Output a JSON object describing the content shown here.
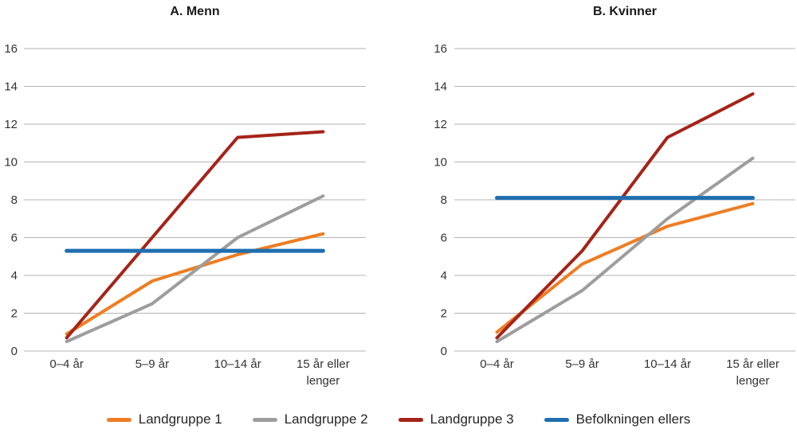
{
  "figure": {
    "background": "#FFFFFF",
    "grid_color": "#B3B3B3",
    "tick_text_color": "#333333",
    "legend": [
      {
        "label": "Landgruppe 1",
        "color": "#EE7D23"
      },
      {
        "label": "Landgruppe 2",
        "color": "#9D9D9D"
      },
      {
        "label": "Landgruppe 3",
        "color": "#A52318"
      },
      {
        "label": "Befolkningen ellers",
        "color": "#1F6EB0"
      }
    ]
  },
  "chart_data": [
    {
      "type": "line",
      "title": "A. Menn",
      "categories": [
        "0–4 år",
        "5–9 år",
        "10–14 år",
        "15 år eller lenger"
      ],
      "categories_wrapped": [
        [
          "0–4 år"
        ],
        [
          "5–9 år"
        ],
        [
          "10–14 år"
        ],
        [
          "15 år eller",
          "lenger"
        ]
      ],
      "ylim": [
        0,
        16
      ],
      "ytick_step": 2,
      "grid": "horizontal",
      "legend_position": "bottom-shared",
      "series": [
        {
          "name": "Landgruppe 1",
          "color": "#EE7D23",
          "values": [
            0.9,
            3.7,
            5.1,
            6.2
          ]
        },
        {
          "name": "Landgruppe 2",
          "color": "#9D9D9D",
          "values": [
            0.5,
            2.5,
            6.0,
            8.2
          ]
        },
        {
          "name": "Landgruppe 3",
          "color": "#A52318",
          "values": [
            0.7,
            6.0,
            11.3,
            11.6
          ]
        },
        {
          "name": "Befolkningen ellers",
          "color": "#1F6EB0",
          "values": [
            5.3,
            5.3,
            5.3,
            5.3
          ]
        }
      ]
    },
    {
      "type": "line",
      "title": "B. Kvinner",
      "categories": [
        "0–4 år",
        "5–9 år",
        "10–14 år",
        "15 år eller lenger"
      ],
      "categories_wrapped": [
        [
          "0–4 år"
        ],
        [
          "5–9 år"
        ],
        [
          "10–14 år"
        ],
        [
          "15 år eller",
          "lenger"
        ]
      ],
      "ylim": [
        0,
        16
      ],
      "ytick_step": 2,
      "grid": "horizontal",
      "legend_position": "bottom-shared",
      "series": [
        {
          "name": "Landgruppe 1",
          "color": "#EE7D23",
          "values": [
            1.0,
            4.6,
            6.6,
            7.8
          ]
        },
        {
          "name": "Landgruppe 2",
          "color": "#9D9D9D",
          "values": [
            0.5,
            3.2,
            7.0,
            10.2
          ]
        },
        {
          "name": "Landgruppe 3",
          "color": "#A52318",
          "values": [
            0.7,
            5.3,
            11.3,
            13.6
          ]
        },
        {
          "name": "Befolkningen ellers",
          "color": "#1F6EB0",
          "values": [
            8.1,
            8.1,
            8.1,
            8.1
          ]
        }
      ]
    }
  ]
}
